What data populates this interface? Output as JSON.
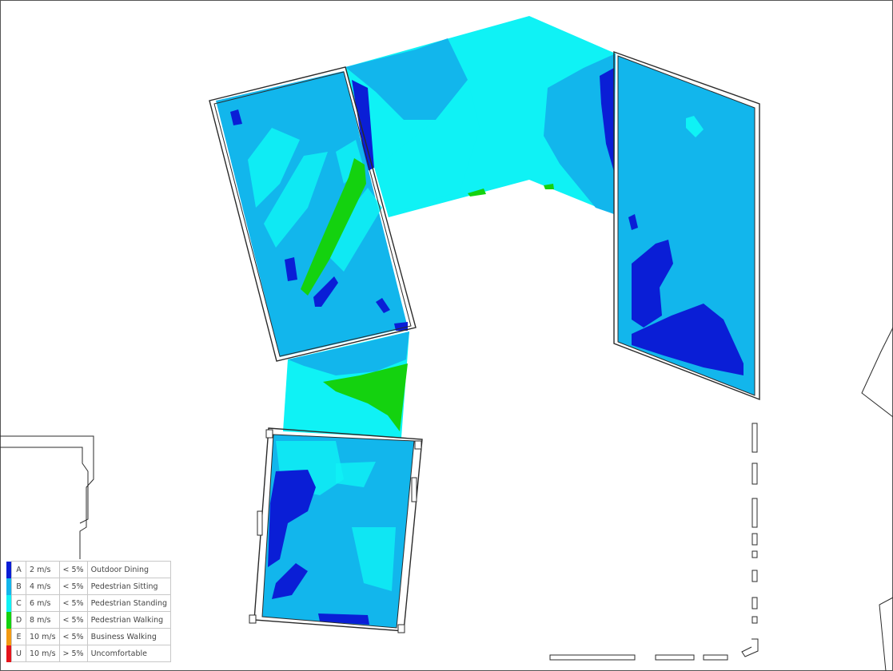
{
  "colors": {
    "A": "#0a1ed6",
    "B": "#12b6ec",
    "C": "#0ff2f5",
    "D": "#14d20f",
    "E": "#f39a12",
    "U": "#e5141b",
    "outline": "#2b2b2b"
  },
  "legend": [
    {
      "code": "A",
      "speed": "2 m/s",
      "freq": "< 5%",
      "label": "Outdoor Dining",
      "color": "#0a1ed6"
    },
    {
      "code": "B",
      "speed": "4 m/s",
      "freq": "< 5%",
      "label": "Pedestrian Sitting",
      "color": "#12b6ec"
    },
    {
      "code": "C",
      "speed": "6 m/s",
      "freq": "< 5%",
      "label": "Pedestrian Standing",
      "color": "#0ff2f5"
    },
    {
      "code": "D",
      "speed": "8 m/s",
      "freq": "< 5%",
      "label": "Pedestrian Walking",
      "color": "#14d20f"
    },
    {
      "code": "E",
      "speed": "10 m/s",
      "freq": "< 5%",
      "label": "Business Walking",
      "color": "#f39a12"
    },
    {
      "code": "U",
      "speed": "10 m/s",
      "freq": "> 5%",
      "label": "Uncomfortable",
      "color": "#e5141b"
    }
  ]
}
